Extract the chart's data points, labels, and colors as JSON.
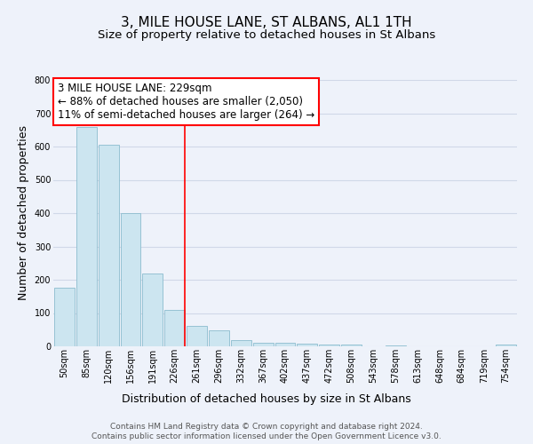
{
  "title": "3, MILE HOUSE LANE, ST ALBANS, AL1 1TH",
  "subtitle": "Size of property relative to detached houses in St Albans",
  "xlabel": "Distribution of detached houses by size in St Albans",
  "ylabel": "Number of detached properties",
  "bar_labels": [
    "50sqm",
    "85sqm",
    "120sqm",
    "156sqm",
    "191sqm",
    "226sqm",
    "261sqm",
    "296sqm",
    "332sqm",
    "367sqm",
    "402sqm",
    "437sqm",
    "472sqm",
    "508sqm",
    "543sqm",
    "578sqm",
    "613sqm",
    "648sqm",
    "684sqm",
    "719sqm",
    "754sqm"
  ],
  "bar_values": [
    175,
    660,
    605,
    400,
    220,
    110,
    62,
    48,
    18,
    12,
    12,
    8,
    5,
    5,
    0,
    4,
    0,
    0,
    0,
    0,
    5
  ],
  "bar_color": "#cce5f0",
  "bar_edge_color": "#8bbcce",
  "annotation_title": "3 MILE HOUSE LANE: 229sqm",
  "annotation_line1": "← 88% of detached houses are smaller (2,050)",
  "annotation_line2": "11% of semi-detached houses are larger (264) →",
  "ylim": [
    0,
    800
  ],
  "yticks": [
    0,
    100,
    200,
    300,
    400,
    500,
    600,
    700,
    800
  ],
  "footer_line1": "Contains HM Land Registry data © Crown copyright and database right 2024.",
  "footer_line2": "Contains public sector information licensed under the Open Government Licence v3.0.",
  "bg_color": "#eef2fa",
  "plot_bg_color": "#eef2fa",
  "grid_color": "#d0d8e8",
  "title_fontsize": 11,
  "subtitle_fontsize": 9.5,
  "axis_label_fontsize": 9,
  "tick_fontsize": 7,
  "footer_fontsize": 6.5,
  "annotation_fontsize": 8.5,
  "red_line_index": 5
}
